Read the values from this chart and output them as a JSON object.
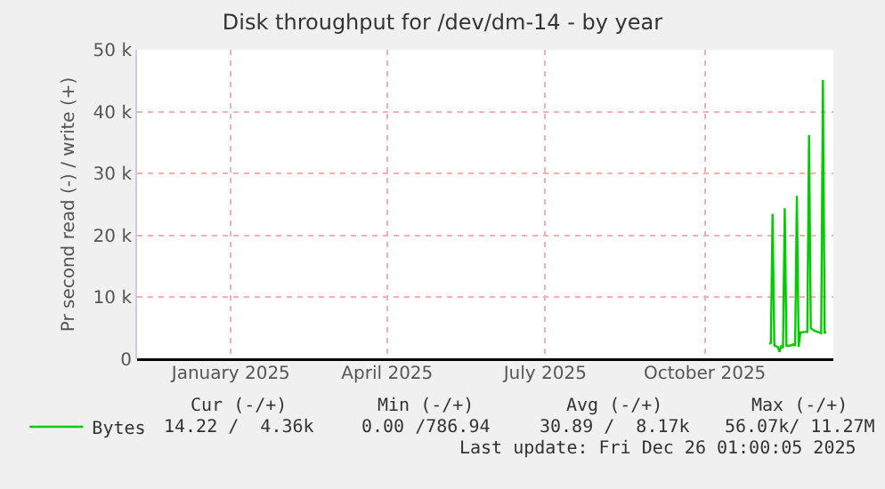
{
  "chart_data": {
    "type": "line",
    "title": "Disk throughput for /dev/dm-14 - by year",
    "ylabel": "Pr second read (-) / write (+)",
    "x": [
      "2025-11-22",
      "2025-11-23",
      "2025-11-24",
      "2025-11-25",
      "2025-11-27",
      "2025-11-28",
      "2025-11-29",
      "2025-11-30",
      "2025-12-01",
      "2025-12-02",
      "2025-12-04",
      "2025-12-06",
      "2025-12-07",
      "2025-12-08",
      "2025-12-09",
      "2025-12-10",
      "2025-12-12",
      "2025-12-14",
      "2025-12-15",
      "2025-12-16",
      "2025-12-18",
      "2025-12-20",
      "2025-12-22",
      "2025-12-23",
      "2025-12-24",
      "2025-12-25"
    ],
    "series": [
      {
        "name": "Bytes",
        "color": "#00cc00",
        "values": [
          2500,
          2600,
          23500,
          2200,
          2000,
          1200,
          2200,
          1800,
          24400,
          2200,
          2200,
          2400,
          2200,
          26400,
          2000,
          4300,
          4400,
          4400,
          36200,
          5000,
          4600,
          4400,
          4200,
          45100,
          4300,
          4300
        ]
      }
    ],
    "xlim": [
      "2024-11-23",
      "2025-12-29"
    ],
    "xticks": [
      {
        "value": "2025-01-16",
        "label": "January 2025"
      },
      {
        "value": "2025-04-16",
        "label": "April 2025"
      },
      {
        "value": "2025-07-16",
        "label": "July 2025"
      },
      {
        "value": "2025-10-16",
        "label": "October 2025"
      }
    ],
    "ylim": [
      0,
      50000
    ],
    "yticks": [
      0,
      {
        "value": 10000,
        "label": "10 k"
      },
      {
        "value": 20000,
        "label": "20 k"
      },
      {
        "value": 30000,
        "label": "30 k"
      },
      {
        "value": 40000,
        "label": "40 k"
      },
      {
        "value": 50000,
        "label": "50 k"
      }
    ],
    "grid": true,
    "legend": "bottom left",
    "marker": "none",
    "line_style": "solid",
    "annotations": [
      "Cur (-/+)",
      "Min (-/+)",
      "Avg (-/+)",
      "Max (-/+)",
      "14.22 /  4.36k",
      "0.00 /786.94",
      "30.89 /  8.17k",
      "56.07k/ 11.27M",
      "Last update: Fri Dec 26 01:00:05 2025"
    ]
  }
}
